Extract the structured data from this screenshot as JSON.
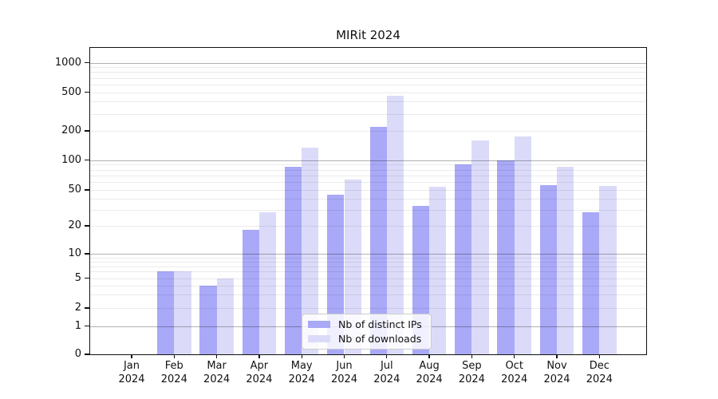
{
  "title": "MIRit 2024",
  "chart_data": {
    "type": "bar",
    "title": "MIRit 2024",
    "categories": [
      "Jan 2024",
      "Feb 2024",
      "Mar 2024",
      "Apr 2024",
      "May 2024",
      "Jun 2024",
      "Jul 2024",
      "Aug 2024",
      "Sep 2024",
      "Oct 2024",
      "Nov 2024",
      "Dec 2024"
    ],
    "series": [
      {
        "name": "Nb of distinct IPs",
        "color": "#a9a9f7",
        "values": [
          0,
          6,
          4,
          18,
          85,
          44,
          220,
          33,
          90,
          100,
          56,
          28
        ]
      },
      {
        "name": "Nb of downloads",
        "color": "#dbdbf9",
        "values": [
          0,
          6,
          5,
          28,
          135,
          63,
          460,
          54,
          160,
          175,
          85,
          55
        ]
      }
    ],
    "xlabel": "",
    "ylabel": "",
    "yscale": "symlog",
    "ylim": [
      0,
      1400
    ],
    "yticks": [
      0,
      1,
      2,
      5,
      10,
      20,
      50,
      100,
      200,
      500,
      1000
    ],
    "grid": "horizontal, dark lines at decades (1,10,100,1000), faint log minor lines",
    "legend_position": "lower center"
  },
  "colors": {
    "series_ips": "#a9a9f7",
    "series_downloads": "#dbdbf9",
    "grid_major": "rgba(0,0,0,0.30)",
    "grid_minor": "rgba(0,0,0,0.08)",
    "spine": "#111111",
    "text": "#111111",
    "legend_bg": "rgba(255,255,255,0.82)",
    "legend_border": "#cccccc"
  }
}
